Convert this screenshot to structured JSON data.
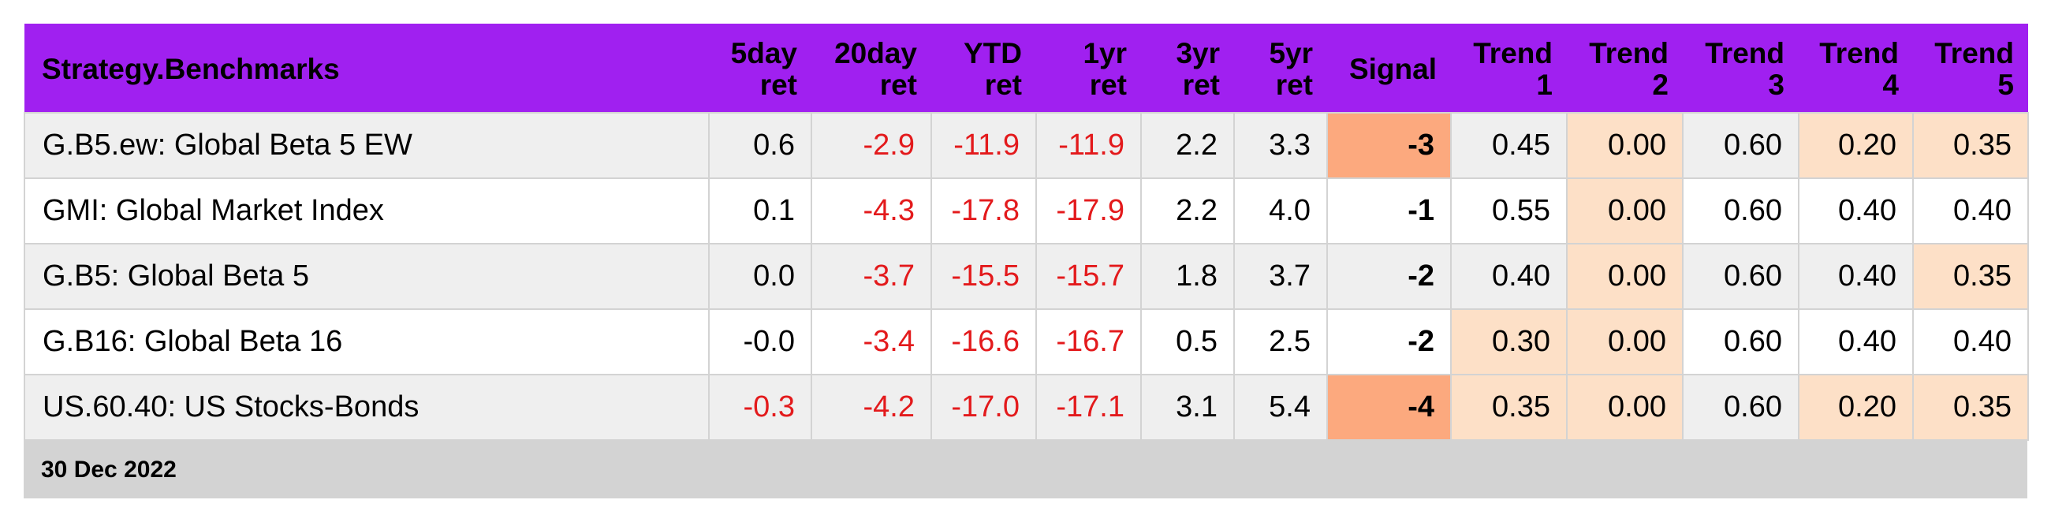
{
  "table": {
    "headers": [
      {
        "l1": "Strategy.Benchmarks",
        "l2": ""
      },
      {
        "l1": "5day",
        "l2": "ret"
      },
      {
        "l1": "20day",
        "l2": "ret"
      },
      {
        "l1": "YTD",
        "l2": "ret"
      },
      {
        "l1": "1yr",
        "l2": "ret"
      },
      {
        "l1": "3yr",
        "l2": "ret"
      },
      {
        "l1": "5yr",
        "l2": "ret"
      },
      {
        "l1": "Signal",
        "l2": ""
      },
      {
        "l1": "Trend",
        "l2": "1"
      },
      {
        "l1": "Trend",
        "l2": "2"
      },
      {
        "l1": "Trend",
        "l2": "3"
      },
      {
        "l1": "Trend",
        "l2": "4"
      },
      {
        "l1": "Trend",
        "l2": "5"
      }
    ],
    "rows": [
      {
        "name": "G.B5.ew: Global Beta 5 EW",
        "d5": "0.6",
        "d20": "-2.9",
        "ytd": "-11.9",
        "y1": "-11.9",
        "y3": "2.2",
        "y5": "3.3",
        "signal": "-3",
        "t1": "0.45",
        "t2": "0.00",
        "t3": "0.60",
        "t4": "0.20",
        "t5": "0.35"
      },
      {
        "name": "GMI: Global Market Index",
        "d5": "0.1",
        "d20": "-4.3",
        "ytd": "-17.8",
        "y1": "-17.9",
        "y3": "2.2",
        "y5": "4.0",
        "signal": "-1",
        "t1": "0.55",
        "t2": "0.00",
        "t3": "0.60",
        "t4": "0.40",
        "t5": "0.40"
      },
      {
        "name": "G.B5: Global Beta 5",
        "d5": "0.0",
        "d20": "-3.7",
        "ytd": "-15.5",
        "y1": "-15.7",
        "y3": "1.8",
        "y5": "3.7",
        "signal": "-2",
        "t1": "0.40",
        "t2": "0.00",
        "t3": "0.60",
        "t4": "0.40",
        "t5": "0.35"
      },
      {
        "name": "G.B16: Global Beta 16",
        "d5": "-0.0",
        "d20": "-3.4",
        "ytd": "-16.6",
        "y1": "-16.7",
        "y3": "0.5",
        "y5": "2.5",
        "signal": "-2",
        "t1": "0.30",
        "t2": "0.00",
        "t3": "0.60",
        "t4": "0.40",
        "t5": "0.40"
      },
      {
        "name": "US.60.40: US Stocks-Bonds",
        "d5": "-0.3",
        "d20": "-4.2",
        "ytd": "-17.0",
        "y1": "-17.1",
        "y3": "3.1",
        "y5": "5.4",
        "signal": "-4",
        "t1": "0.35",
        "t2": "0.00",
        "t3": "0.60",
        "t4": "0.20",
        "t5": "0.35"
      }
    ],
    "footer": "30 Dec 2022"
  },
  "colors": {
    "header_bg": "#a020f0",
    "negative_text": "#e31a1c",
    "highlight_strong": "#fca97e",
    "highlight_light": "#fde0c7",
    "row_alt_bg": "#efefef",
    "footer_bg": "#d3d3d3"
  }
}
